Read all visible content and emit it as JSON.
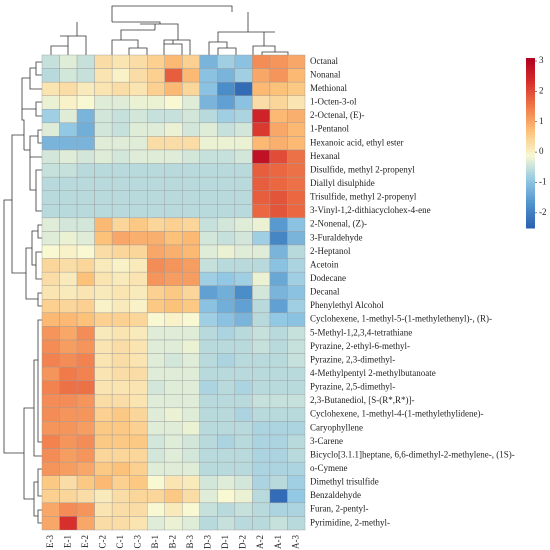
{
  "chart_data": {
    "type": "heatmap",
    "x": [
      "E-3",
      "E-1",
      "E-2",
      "C-2",
      "C-1",
      "C-3",
      "B-1",
      "B-2",
      "B-3",
      "D-3",
      "D-1",
      "D-2",
      "A-2",
      "A-1",
      "A-3"
    ],
    "y": [
      "Octanal",
      "Nonanal",
      "Methional",
      "1-Octen-3-ol",
      "2-Octenal, (E)-",
      "1-Pentanol",
      "Hexanoic acid, ethyl ester",
      "Hexanal",
      "Disulfide, methyl 2-propenyl",
      "Diallyl disulphide",
      "Trisulfide, methyl 2-propenyl",
      "3-Vinyl-1,2-dithiacyclohex-4-ene",
      "2-Nonenal, (Z)-",
      "3-Furaldehyde",
      "2-Heptanol",
      "Acetoin",
      "Dodecane",
      "Decanal",
      "Phenylethyl Alcohol",
      "Cyclohexene, 1-methyl-5-(1-methylethenyl)-, (R)-",
      "5-Methyl-1,2,3,4-tetrathiane",
      "Pyrazine, 2-ethyl-6-methyl-",
      "Pyrazine, 2,3-dimethyl-",
      "4-Methylpentyl 2-methylbutanoate",
      "Pyrazine, 2,5-dimethyl-",
      "2,3-Butanediol, [S-(R*,R*)]-",
      "Cyclohexene, 1-methyl-4-(1-methylethylidene)-",
      "Caryophyllene",
      "3-Carene",
      "Bicyclo[3.1.1]heptane, 6,6-dimethyl-2-methylene-, (1S)-",
      "o-Cymene",
      "Dimethyl trisulfide",
      "Benzaldehyde",
      "Furan, 2-pentyl-",
      "Pyrimidine, 2-methyl-"
    ],
    "values": [
      [
        -0.5,
        -0.3,
        -0.5,
        0.3,
        0.2,
        0.3,
        0.5,
        0.8,
        0.5,
        -1.2,
        -0.8,
        -1.0,
        1.3,
        1.2,
        1.0
      ],
      [
        -0.6,
        -0.4,
        -0.5,
        0.2,
        0,
        0.3,
        0.5,
        1.8,
        0.8,
        -1.0,
        -1.2,
        -0.8,
        1.0,
        1.2,
        0.8
      ],
      [
        0.2,
        0.3,
        0.1,
        0.2,
        0.3,
        0.2,
        0.5,
        0.8,
        0.4,
        -1.0,
        -1.8,
        -2.3,
        0.8,
        0.7,
        0.6
      ],
      [
        -0.2,
        0,
        -0.1,
        -0.3,
        -0.3,
        -0.2,
        -0.2,
        -0.1,
        -0.3,
        -1.2,
        -1.5,
        -1.0,
        0.3,
        0.4,
        0.2
      ],
      [
        -0.8,
        -0.3,
        -1.2,
        -0.4,
        -0.5,
        -0.4,
        -0.5,
        -0.5,
        -0.4,
        -0.6,
        -0.8,
        -0.7,
        2.5,
        0.8,
        0.9
      ],
      [
        -0.3,
        -0.9,
        -1.3,
        -0.4,
        -0.5,
        -0.3,
        -0.3,
        -0.2,
        -0.4,
        -0.3,
        -0.5,
        -0.4,
        2.2,
        1.0,
        0.8
      ],
      [
        -1.2,
        -1.2,
        -1.2,
        -0.3,
        -0.3,
        -0.3,
        0.3,
        0.3,
        0.3,
        -0.2,
        -0.2,
        -0.2,
        0.8,
        0.9,
        0.8
      ],
      [
        -0.4,
        -0.3,
        -0.4,
        -0.3,
        -0.4,
        -0.3,
        -0.3,
        -0.3,
        -0.4,
        -0.5,
        -0.5,
        -0.4,
        2.8,
        2.0,
        1.6
      ],
      [
        -0.5,
        -0.5,
        -0.6,
        -0.6,
        -0.6,
        -0.6,
        -0.6,
        -0.6,
        -0.6,
        -0.6,
        -0.6,
        -0.6,
        1.8,
        1.7,
        1.6
      ],
      [
        -0.6,
        -0.6,
        -0.6,
        -0.6,
        -0.6,
        -0.6,
        -0.6,
        -0.6,
        -0.6,
        -0.6,
        -0.6,
        -0.6,
        1.8,
        1.7,
        1.6
      ],
      [
        -0.6,
        -0.6,
        -0.6,
        -0.6,
        -0.6,
        -0.6,
        -0.6,
        -0.6,
        -0.6,
        -0.6,
        -0.6,
        -0.6,
        1.8,
        1.9,
        1.7
      ],
      [
        -0.6,
        -0.6,
        -0.6,
        -0.6,
        -0.6,
        -0.6,
        -0.6,
        -0.6,
        -0.6,
        -0.6,
        -0.6,
        -0.6,
        1.7,
        1.9,
        1.7
      ],
      [
        -0.3,
        -0.4,
        -0.4,
        0.8,
        0.4,
        0.6,
        0.4,
        0.5,
        0.4,
        -0.5,
        -0.4,
        -0.3,
        -0.2,
        -1.6,
        -1.0
      ],
      [
        -0.3,
        -0.2,
        -0.3,
        0.7,
        1.0,
        0.9,
        0.9,
        0.7,
        0.8,
        -0.4,
        -0.5,
        -0.4,
        -0.8,
        -1.9,
        -1.2
      ],
      [
        -0.1,
        0,
        -0.1,
        0.3,
        0.4,
        0.4,
        1.0,
        0.9,
        0.8,
        -0.3,
        -0.2,
        -0.3,
        -0.3,
        -1.2,
        -0.6
      ],
      [
        0.4,
        0.3,
        0.4,
        0.1,
        0,
        0.1,
        1.3,
        1.2,
        1.1,
        -0.5,
        -0.6,
        -0.6,
        -0.6,
        -1.0,
        -0.7
      ],
      [
        0.3,
        0.1,
        0.7,
        0.2,
        0.1,
        0.2,
        1.2,
        1.1,
        1.1,
        -0.8,
        -0.9,
        -0.8,
        -0.2,
        -1.4,
        -0.8
      ],
      [
        0.2,
        0.1,
        0.2,
        0.1,
        0.2,
        0.1,
        0.5,
        0.6,
        0.4,
        -1.5,
        -1.3,
        -1.8,
        -0.4,
        -1.2,
        -1.0
      ],
      [
        0.5,
        0.4,
        0.5,
        0,
        0.1,
        0,
        0.6,
        0.7,
        0.6,
        -1.0,
        -1.3,
        -1.5,
        -0.6,
        -1.5,
        -0.8
      ],
      [
        0.8,
        0.8,
        0.7,
        0.5,
        0.5,
        0.4,
        -0.1,
        0,
        -0.1,
        -0.8,
        -1.0,
        -1.2,
        -0.6,
        -0.9,
        -1.0
      ],
      [
        1.2,
        1.0,
        1.3,
        0.1,
        0.2,
        0.1,
        -0.3,
        -0.3,
        -0.3,
        -0.6,
        -0.7,
        -0.6,
        -0.5,
        -0.6,
        -0.5
      ],
      [
        1.3,
        1.1,
        1.2,
        0.2,
        0.3,
        0.2,
        -0.3,
        -0.3,
        -0.2,
        -0.6,
        -0.6,
        -0.6,
        -0.5,
        -0.6,
        -0.5
      ],
      [
        1.4,
        1.3,
        1.4,
        0.2,
        0.3,
        0.2,
        -0.3,
        -0.4,
        -0.3,
        -0.6,
        -0.7,
        -0.6,
        -0.6,
        -0.6,
        -0.5
      ],
      [
        1.2,
        1.5,
        1.4,
        0.2,
        0.3,
        0.3,
        -0.3,
        -0.3,
        -0.3,
        -0.6,
        -0.6,
        -0.6,
        -0.6,
        -0.6,
        -0.6
      ],
      [
        1.4,
        1.6,
        1.6,
        0.2,
        0.2,
        0.2,
        -0.4,
        -0.3,
        -0.3,
        -0.7,
        -0.6,
        -0.7,
        -0.6,
        -0.6,
        -0.6
      ],
      [
        1.3,
        1.3,
        1.2,
        0.3,
        0.3,
        0.2,
        -0.3,
        -0.3,
        -0.3,
        -0.6,
        -0.6,
        -0.6,
        -0.5,
        -0.5,
        -0.5
      ],
      [
        1.3,
        1.2,
        1.2,
        0.5,
        0.6,
        0.4,
        -0.3,
        -0.2,
        -0.3,
        -0.6,
        -0.6,
        -0.7,
        -0.6,
        -0.6,
        -0.6
      ],
      [
        1.2,
        1.2,
        1.1,
        0.6,
        0.6,
        0.5,
        -0.3,
        -0.3,
        -0.2,
        -0.6,
        -0.6,
        -0.6,
        -0.7,
        -0.7,
        -0.7
      ],
      [
        1.4,
        1.2,
        1.3,
        0.6,
        0.6,
        0.6,
        -0.4,
        -0.3,
        -0.4,
        -0.6,
        -0.7,
        -0.6,
        -0.7,
        -0.7,
        -0.6
      ],
      [
        1.3,
        1.1,
        1.2,
        0.4,
        0.4,
        0.4,
        -0.4,
        -0.3,
        -0.4,
        -0.6,
        -0.6,
        -0.6,
        -0.7,
        -0.7,
        -0.6
      ],
      [
        1.2,
        1.1,
        1.0,
        0.6,
        0.7,
        0.5,
        -0.3,
        -0.3,
        -0.3,
        -0.6,
        -0.6,
        -0.6,
        -0.7,
        -0.7,
        -0.7
      ],
      [
        0.6,
        0.3,
        0.6,
        0.8,
        0.5,
        0.6,
        -0.1,
        0.2,
        0.1,
        -0.4,
        -0.3,
        -0.4,
        -0.7,
        -0.6,
        -0.8
      ],
      [
        0.5,
        0.4,
        0.3,
        0.1,
        0.3,
        0.4,
        0.4,
        0.6,
        0.3,
        -0.3,
        -0.1,
        -0.2,
        -0.6,
        -2.3,
        -0.9
      ],
      [
        1.0,
        1.3,
        1.2,
        0.2,
        0.3,
        0.3,
        -0.1,
        0.1,
        -0.1,
        -0.5,
        -0.6,
        -0.5,
        -0.6,
        -0.7,
        -0.7
      ],
      [
        1.0,
        2.3,
        1.0,
        0.3,
        0.3,
        0.2,
        -0.3,
        -0.2,
        -0.3,
        -0.6,
        -0.5,
        -0.6,
        -0.6,
        -0.5,
        -0.6
      ]
    ],
    "colors": [
      "#2a5fae",
      "#4f93cc",
      "#93c8e4",
      "#f8f8d2",
      "#fcc27a",
      "#f07a4a",
      "#d7302c",
      "#b2001f"
    ],
    "clim": [
      -2.5,
      3.1
    ],
    "cticks": [
      -2,
      -1,
      0,
      1,
      2,
      3
    ]
  }
}
